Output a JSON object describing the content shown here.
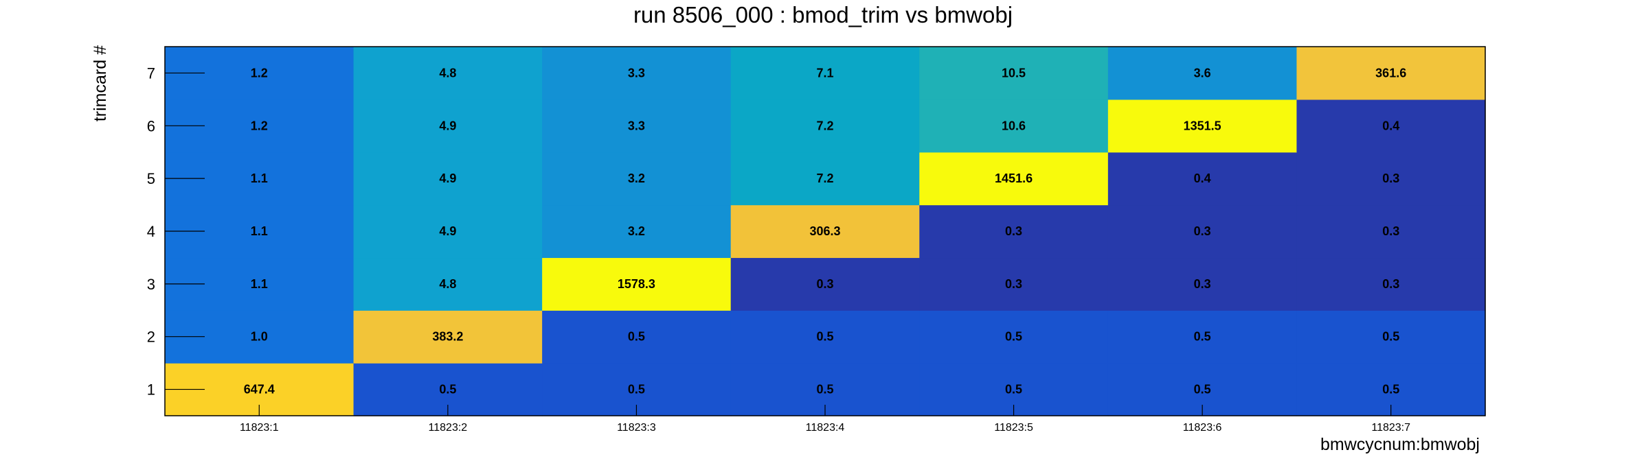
{
  "chart_data": {
    "type": "heatmap",
    "title": "run 8506_000 : bmod_trim vs bmwobj",
    "xlabel": "bmwcycnum:bmwobj",
    "ylabel": "trimcard #",
    "x_categories": [
      "11823:1",
      "11823:2",
      "11823:3",
      "11823:4",
      "11823:5",
      "11823:6",
      "11823:7"
    ],
    "y_categories": [
      "1",
      "2",
      "3",
      "4",
      "5",
      "6",
      "7"
    ],
    "values": [
      [
        647.4,
        0.5,
        0.5,
        0.5,
        0.5,
        0.5,
        0.5
      ],
      [
        1.0,
        383.2,
        0.5,
        0.5,
        0.5,
        0.5,
        0.5
      ],
      [
        1.1,
        4.8,
        1578.3,
        0.3,
        0.3,
        0.3,
        0.3
      ],
      [
        1.1,
        4.9,
        3.2,
        306.3,
        0.3,
        0.3,
        0.3
      ],
      [
        1.1,
        4.9,
        3.2,
        7.2,
        1451.6,
        0.4,
        0.3
      ],
      [
        1.2,
        4.9,
        3.3,
        7.2,
        10.6,
        1351.5,
        0.4
      ],
      [
        1.2,
        4.8,
        3.3,
        7.1,
        10.5,
        3.6,
        361.6
      ]
    ],
    "colors": [
      [
        "#fbd127",
        "#1953cf",
        "#1953cf",
        "#1953cf",
        "#1953cf",
        "#1953cf",
        "#1953cf"
      ],
      [
        "#1372dc",
        "#f2c439",
        "#1953cf",
        "#1953cf",
        "#1953cf",
        "#1953cf",
        "#1953cf"
      ],
      [
        "#1372dc",
        "#0fa2cf",
        "#f8fa0c",
        "#273aab",
        "#273aab",
        "#273aab",
        "#273aab"
      ],
      [
        "#1372dc",
        "#0fa2cf",
        "#1391d4",
        "#f2c239",
        "#273aab",
        "#273aab",
        "#273aab"
      ],
      [
        "#1372dc",
        "#0fa2cf",
        "#1391d4",
        "#0ba7c6",
        "#f8fa0c",
        "#273aab",
        "#273aab"
      ],
      [
        "#1372dc",
        "#0fa2cf",
        "#1391d4",
        "#0ba7c6",
        "#1fb1b6",
        "#f8fa0c",
        "#273aab"
      ],
      [
        "#1372dc",
        "#0fa2cf",
        "#1391d4",
        "#0ba7c6",
        "#1fb1b6",
        "#1391d4",
        "#f2c43b"
      ]
    ],
    "colormap": "parula",
    "grid": false,
    "legend": "none"
  }
}
